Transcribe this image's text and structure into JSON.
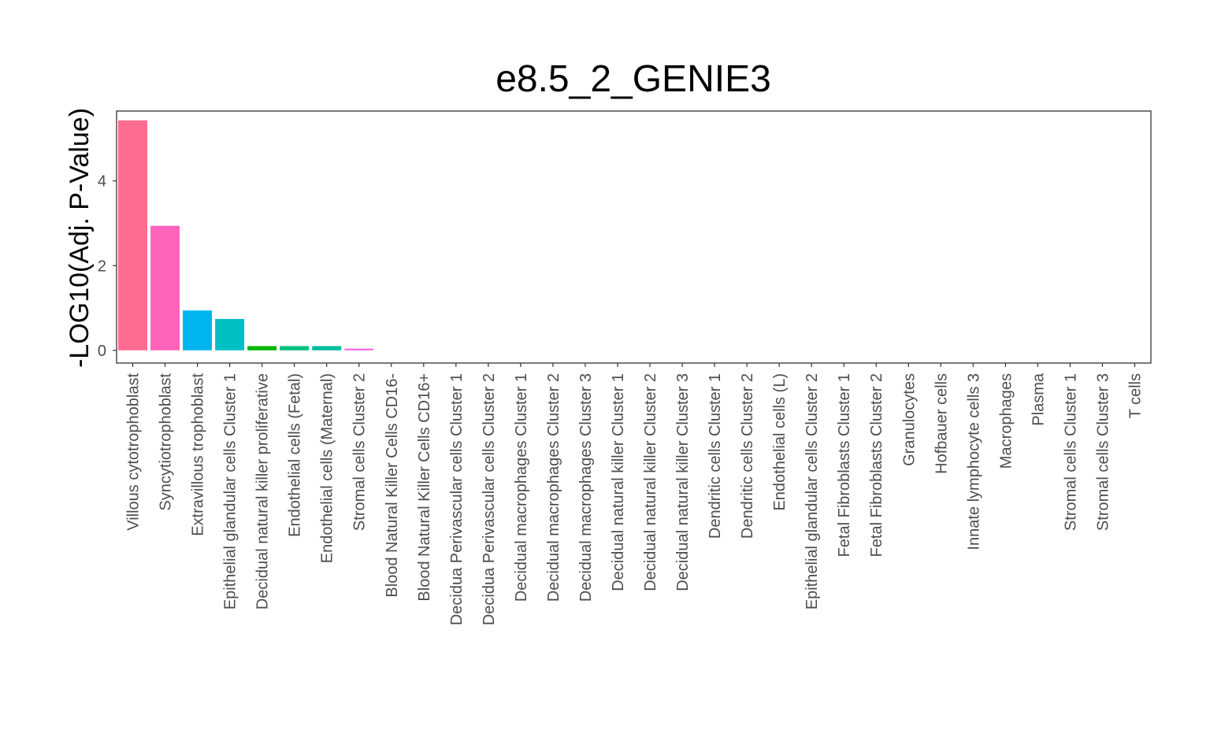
{
  "chart_data": {
    "type": "bar",
    "title": "e8.5_2_GENIE3",
    "xlabel": "",
    "ylabel": "-LOG10(Adj. P-Value)",
    "ylim": [
      -0.3,
      5.65
    ],
    "yticks": [
      0,
      2,
      4
    ],
    "grid": false,
    "legend": "none",
    "categories": [
      "Villous cytotrophoblast",
      "Syncytiotrophoblast",
      "Extravillous trophoblast",
      "Epithelial glandular cells Cluster 1",
      "Decidual natural killer proliferative",
      "Endothelial cells (Fetal)",
      "Endothelial cells (Maternal)",
      "Stromal cells Cluster 2",
      "Blood Natural Killer Cells CD16-",
      "Blood Natural Killer Cells CD16+",
      "Decidua Perivascular cells Cluster 1",
      "Decidua Perivascular cells Cluster 2",
      "Decidual macrophages Cluster 1",
      "Decidual macrophages Cluster 2",
      "Decidual macrophages Cluster 3",
      "Decidual natural killer Cluster 1",
      "Decidual natural killer Cluster 2",
      "Decidual natural killer Cluster 3",
      "Dendritic cells Cluster 1",
      "Dendritic cells Cluster 2",
      "Endothelial cells (L)",
      "Epithelial glandular cells Cluster 2",
      "Fetal Fibroblasts Cluster 1",
      "Fetal Fibroblasts Cluster 2",
      "Granulocytes",
      "Hofbauer cells",
      "Innate lymphocyte cells 3",
      "Macrophages",
      "Plasma",
      "Stromal cells Cluster 1",
      "Stromal cells Cluster 3",
      "T cells"
    ],
    "values": [
      5.43,
      2.94,
      0.94,
      0.74,
      0.1,
      0.1,
      0.1,
      0.04,
      0,
      0,
      0,
      0,
      0,
      0,
      0,
      0,
      0,
      0,
      0,
      0,
      0,
      0,
      0,
      0,
      0,
      0,
      0,
      0,
      0,
      0,
      0,
      0
    ],
    "colors": [
      "#FF6C91",
      "#FF63BC",
      "#00B4EF",
      "#00BFC4",
      "#00B500",
      "#00BF7D",
      "#00BC9F",
      "#F564E3",
      "#FF6A98",
      "#FF6A98",
      "#FF6A98",
      "#FF6A98",
      "#FF6A98",
      "#FF6A98",
      "#FF6A98",
      "#FF6A98",
      "#FF6A98",
      "#FF6A98",
      "#FF6A98",
      "#FF6A98",
      "#FF6A98",
      "#FF6A98",
      "#FF6A98",
      "#FF6A98",
      "#FF6A98",
      "#FF6A98",
      "#FF6A98",
      "#FF6A98",
      "#FF6A98",
      "#FF6A98",
      "#FF6A98",
      "#FF6A98"
    ]
  }
}
